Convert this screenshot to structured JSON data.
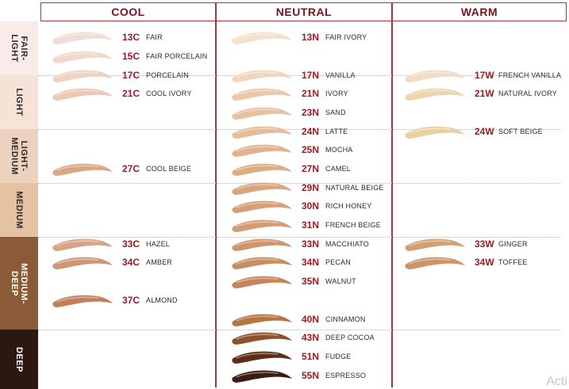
{
  "columns": [
    {
      "label": "COOL"
    },
    {
      "label": "NEUTRAL"
    },
    {
      "label": "WARM"
    }
  ],
  "bands": [
    {
      "label": "FAIR-\nLIGHT",
      "color": "#f9ebe7"
    },
    {
      "label": "LIGHT",
      "color": "#f6e2d6"
    },
    {
      "label": "LIGHT-\nMEDIUM",
      "color": "#edd3bd"
    },
    {
      "label": "MEDIUM",
      "color": "#e5c2a2"
    },
    {
      "label": "MEDIUM-\nDEEP",
      "color": "#8a5b36"
    },
    {
      "label": "DEEP",
      "color": "#2c1711"
    }
  ],
  "shades": {
    "cool": [
      {
        "code": "13C",
        "name": "FAIR",
        "color": "#f2ddd6"
      },
      {
        "code": "15C",
        "name": "FAIR PORCELAIN",
        "color": "#f2d7cc"
      },
      {
        "code": "17C",
        "name": "PORCELAIN",
        "color": "#efd2c2"
      },
      {
        "code": "21C",
        "name": "COOL IVORY",
        "color": "#ecc9b4"
      },
      {
        "code": "27C",
        "name": "COOL BEIGE",
        "color": "#dba683"
      },
      {
        "code": "33C",
        "name": "HAZEL",
        "color": "#d8a286"
      },
      {
        "code": "34C",
        "name": "AMBER",
        "color": "#cf9674"
      },
      {
        "code": "37C",
        "name": "ALMOND",
        "color": "#c27f5c"
      }
    ],
    "neutral": [
      {
        "code": "13N",
        "name": "FAIR IVORY",
        "color": "#f4e1cd"
      },
      {
        "code": "17N",
        "name": "VANILLA",
        "color": "#f1d6bf"
      },
      {
        "code": "21N",
        "name": "IVORY",
        "color": "#ecc7aa"
      },
      {
        "code": "23N",
        "name": "SAND",
        "color": "#e9c0a0"
      },
      {
        "code": "24N",
        "name": "LATTE",
        "color": "#e6bb98"
      },
      {
        "code": "25N",
        "name": "MOCHA",
        "color": "#e1b28e"
      },
      {
        "code": "27N",
        "name": "CAMEL",
        "color": "#ddab84"
      },
      {
        "code": "29N",
        "name": "NATURAL BEIGE",
        "color": "#d9a57c"
      },
      {
        "code": "30N",
        "name": "RICH HONEY",
        "color": "#d6a076"
      },
      {
        "code": "31N",
        "name": "FRENCH BEIGE",
        "color": "#d39c72"
      },
      {
        "code": "33N",
        "name": "MACCHIATO",
        "color": "#cf966c"
      },
      {
        "code": "34N",
        "name": "PECAN",
        "color": "#c98d62"
      },
      {
        "code": "35N",
        "name": "WALNUT",
        "color": "#c48558"
      },
      {
        "code": "40N",
        "name": "CINNAMON",
        "color": "#b57440"
      },
      {
        "code": "43N",
        "name": "DEEP COCOA",
        "color": "#8e512a"
      },
      {
        "code": "51N",
        "name": "FUDGE",
        "color": "#5b2d17"
      },
      {
        "code": "55N",
        "name": "ESPRESSO",
        "color": "#3a1c10"
      }
    ],
    "warm": [
      {
        "code": "17W",
        "name": "FRENCH VANILLA",
        "color": "#f2dcc5"
      },
      {
        "code": "21W",
        "name": "NATURAL IVORY",
        "color": "#efd4b0"
      },
      {
        "code": "24W",
        "name": "SOFT BEIGE",
        "color": "#ebcfa2"
      },
      {
        "code": "33W",
        "name": "GINGER",
        "color": "#d39f70"
      },
      {
        "code": "34W",
        "name": "TOFFEE",
        "color": "#cd9465"
      }
    ]
  },
  "watermark": "Acti"
}
